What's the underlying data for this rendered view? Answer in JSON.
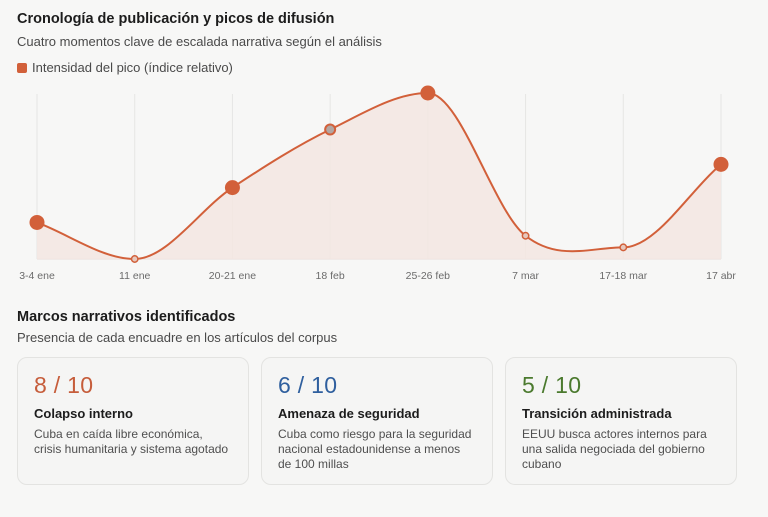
{
  "header": {
    "title": "Cronología de publicación y picos de difusión",
    "subtitle": "Cuatro momentos clave de escalada narrativa según el análisis",
    "legend_label": "Intensidad del pico (índice relativo)",
    "legend_color": "#d2603a"
  },
  "chart_data": {
    "type": "area",
    "title": "Cronología de publicación y picos de difusión",
    "subtitle": "Cuatro momentos clave de escalada narrativa según el análisis",
    "xlabel": "",
    "ylabel": "",
    "categories": [
      "3-4 ene",
      "11 ene",
      "20-21 ene",
      "18 feb",
      "25-26 feb",
      "7 mar",
      "17-18 mar",
      "17 abr"
    ],
    "series": [
      {
        "name": "Intensidad del pico (índice relativo)",
        "values": [
          22,
          0,
          43,
          78,
          100,
          14,
          7,
          57
        ],
        "marker_sizes": [
          "large",
          "small",
          "large",
          "medium",
          "large",
          "small",
          "small",
          "large"
        ]
      }
    ],
    "ylim": [
      0,
      100
    ],
    "grid": "vertical",
    "legend_position": "top-left",
    "colors": {
      "line": "#d2603a",
      "fill": "#f3e6e2",
      "grid": "#e6e6e4",
      "highlight_marker_fill": "#b3a6a2"
    }
  },
  "frames": {
    "title": "Marcos narrativos identificados",
    "subtitle": "Presencia de cada encuadre en los artículos del corpus",
    "cards": [
      {
        "score": "8 / 10",
        "color": "#c65d3b",
        "name": "Colapso interno",
        "description": "Cuba en caída libre económica, crisis humanitaria y sistema agotado"
      },
      {
        "score": "6 / 10",
        "color": "#2f5f9e",
        "name": "Amenaza de seguridad",
        "description": "Cuba como riesgo para la seguridad nacional estadounidense a menos de 100 millas"
      },
      {
        "score": "5 / 10",
        "color": "#4b7a2e",
        "name": "Transición administrada",
        "description": "EEUU busca actores internos para una salida negociada del gobierno cubano"
      }
    ]
  }
}
